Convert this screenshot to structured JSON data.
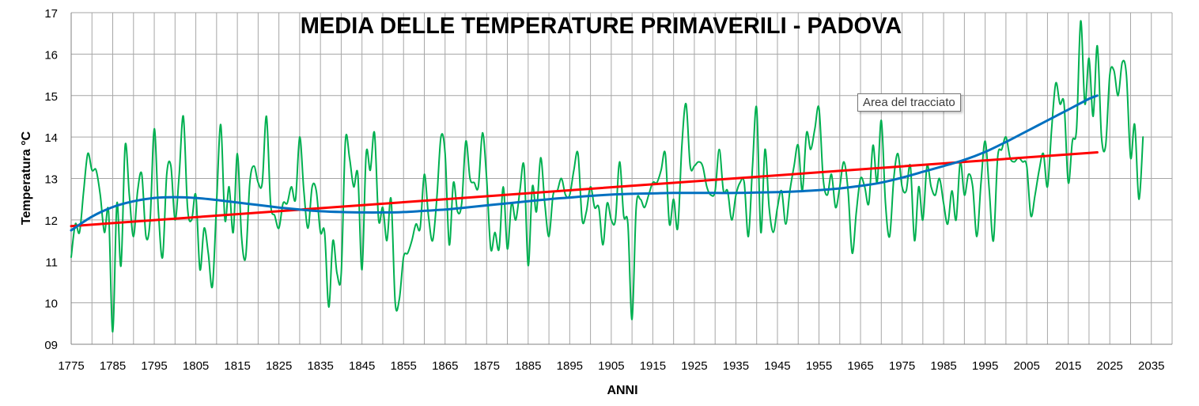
{
  "chart_data": {
    "type": "line",
    "title": "MEDIA DELLE TEMPERATURE PRIMAVERILI - PADOVA",
    "xlabel": "ANNI",
    "ylabel": "Temperatura °C",
    "xlim": [
      1775,
      2040
    ],
    "ylim": [
      9,
      17
    ],
    "x_ticks": [
      "1775",
      "1785",
      "1795",
      "1805",
      "1815",
      "1825",
      "1835",
      "1845",
      "1855",
      "1865",
      "1875",
      "1885",
      "1895",
      "1905",
      "1915",
      "1925",
      "1935",
      "1945",
      "1955",
      "1965",
      "1975",
      "1985",
      "1995",
      "2005",
      "2015",
      "2025",
      "2035"
    ],
    "y_ticks": [
      "09",
      "10",
      "11",
      "12",
      "13",
      "14",
      "15",
      "16",
      "17"
    ],
    "grid": true,
    "colors": {
      "observed": "#00b050",
      "linear_trend": "#ff0000",
      "poly_trend": "#0070c0"
    },
    "series": [
      {
        "key": "observed",
        "x_start": 1775,
        "values": [
          11.1,
          11.9,
          11.7,
          12.7,
          13.6,
          13.2,
          13.2,
          12.6,
          11.7,
          12.2,
          9.3,
          12.4,
          10.9,
          13.8,
          12.6,
          11.6,
          12.7,
          13.1,
          11.6,
          12.0,
          14.2,
          12.2,
          11.1,
          13.1,
          13.3,
          12.0,
          13.1,
          14.5,
          12.3,
          12.0,
          12.6,
          10.8,
          11.8,
          11.2,
          10.4,
          12.4,
          14.3,
          12.0,
          12.8,
          11.7,
          13.6,
          11.6,
          11.1,
          12.9,
          13.3,
          12.9,
          12.9,
          14.5,
          12.4,
          12.1,
          11.8,
          12.4,
          12.4,
          12.8,
          12.5,
          14.0,
          12.7,
          11.8,
          12.8,
          12.7,
          11.7,
          11.7,
          9.9,
          11.5,
          10.7,
          10.7,
          13.9,
          13.5,
          12.8,
          13.1,
          10.8,
          13.6,
          13.2,
          14.1,
          12.0,
          12.3,
          11.5,
          12.5,
          10.0,
          10.1,
          11.1,
          11.2,
          11.5,
          11.9,
          11.8,
          13.1,
          12.1,
          11.5,
          12.5,
          14.0,
          13.6,
          11.4,
          12.9,
          12.2,
          12.4,
          13.9,
          13.0,
          12.9,
          12.8,
          14.1,
          13.0,
          11.3,
          11.7,
          11.3,
          12.8,
          11.3,
          12.4,
          12.0,
          12.7,
          13.3,
          10.9,
          12.8,
          12.2,
          13.5,
          12.4,
          11.6,
          12.6,
          12.7,
          13.0,
          12.6,
          12.6,
          13.2,
          13.6,
          12.0,
          12.2,
          12.8,
          12.3,
          12.3,
          11.4,
          12.4,
          12.0,
          12.0,
          13.4,
          12.1,
          11.9,
          9.6,
          12.3,
          12.5,
          12.3,
          12.6,
          12.9,
          12.9,
          13.2,
          13.6,
          11.9,
          12.5,
          11.8,
          13.8,
          14.8,
          13.3,
          13.3,
          13.4,
          13.3,
          12.8,
          12.6,
          12.7,
          13.7,
          12.7,
          12.7,
          12.0,
          12.6,
          12.9,
          12.9,
          11.6,
          13.3,
          14.7,
          11.7,
          13.7,
          12.3,
          11.7,
          12.3,
          12.7,
          11.9,
          12.7,
          13.3,
          13.8,
          12.7,
          14.1,
          13.7,
          14.2,
          14.7,
          13.0,
          12.6,
          13.1,
          12.3,
          12.8,
          13.4,
          12.7,
          11.2,
          12.2,
          13.0,
          12.8,
          12.4,
          13.8,
          12.9,
          14.4,
          12.4,
          11.6,
          13.0,
          13.6,
          12.8,
          12.7,
          13.3,
          11.5,
          12.8,
          12.0,
          13.3,
          12.8,
          12.6,
          13.0,
          12.4,
          11.9,
          12.7,
          12.0,
          13.4,
          12.6,
          13.1,
          12.8,
          11.6,
          12.9,
          13.9,
          12.7,
          11.5,
          13.5,
          13.7,
          14.0,
          13.5,
          13.4,
          13.5,
          13.4,
          13.3,
          12.1,
          12.6,
          13.2,
          13.6,
          12.8,
          14.2,
          15.3,
          14.8,
          14.8,
          12.9,
          13.9,
          14.2,
          16.8,
          14.8,
          15.9,
          14.5,
          16.2,
          14.0,
          13.8,
          15.5,
          15.6,
          15.0,
          15.8,
          15.5,
          13.5,
          14.3,
          12.5,
          14.0
        ]
      },
      {
        "key": "linear_trend",
        "x": [
          1775,
          2022
        ],
        "y": [
          11.85,
          13.63
        ]
      },
      {
        "key": "poly_trend",
        "x": [
          1775,
          1780,
          1785,
          1790,
          1795,
          1800,
          1805,
          1810,
          1815,
          1820,
          1825,
          1830,
          1835,
          1840,
          1845,
          1850,
          1855,
          1860,
          1865,
          1870,
          1875,
          1880,
          1885,
          1890,
          1895,
          1900,
          1905,
          1910,
          1915,
          1920,
          1925,
          1930,
          1935,
          1940,
          1945,
          1950,
          1955,
          1960,
          1965,
          1970,
          1975,
          1980,
          1985,
          1990,
          1995,
          2000,
          2005,
          2010,
          2015,
          2020,
          2022
        ],
        "y": [
          11.75,
          12.08,
          12.31,
          12.45,
          12.53,
          12.55,
          12.53,
          12.48,
          12.42,
          12.36,
          12.3,
          12.25,
          12.21,
          12.19,
          12.18,
          12.18,
          12.19,
          12.22,
          12.25,
          12.3,
          12.35,
          12.4,
          12.45,
          12.5,
          12.54,
          12.58,
          12.61,
          12.63,
          12.64,
          12.65,
          12.65,
          12.65,
          12.65,
          12.66,
          12.67,
          12.69,
          12.72,
          12.76,
          12.82,
          12.9,
          13.02,
          13.16,
          13.3,
          13.45,
          13.64,
          13.88,
          14.14,
          14.4,
          14.66,
          14.92,
          15.0
        ]
      }
    ]
  },
  "tooltip": {
    "text": "Area del tracciato"
  }
}
